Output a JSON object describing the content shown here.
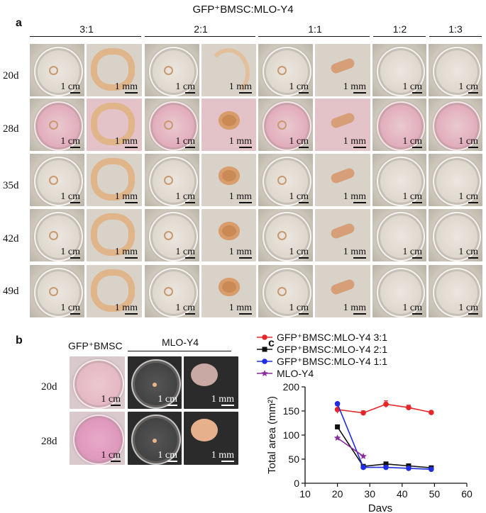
{
  "panel_a": {
    "letter": "a",
    "title": "GFP⁺BMSC:MLO-Y4",
    "ratios": [
      "3:1",
      "2:1",
      "1:1",
      "1:2",
      "1:3"
    ],
    "days": [
      "20d",
      "28d",
      "35d",
      "42d",
      "49d"
    ],
    "scale_cm": "1 cm",
    "scale_mm": "1 mm"
  },
  "panel_b": {
    "letter": "b",
    "label_bmsc": "GFP⁺BMSC",
    "label_mlo": "MLO-Y4",
    "days": [
      "20d",
      "28d"
    ],
    "scale_cm": "1 cm",
    "scale_mm": "1 mm"
  },
  "chart_data": {
    "panel_letter": "c",
    "type": "line",
    "title": "",
    "xlabel": "Days",
    "ylabel": "Total area (mm²)",
    "xlim": [
      10,
      60
    ],
    "ylim": [
      0,
      200
    ],
    "xticks": [
      10,
      20,
      30,
      40,
      50,
      60
    ],
    "yticks": [
      0,
      50,
      100,
      150,
      200
    ],
    "legend_position": "top",
    "series": [
      {
        "name": "GFP⁺BMSC:MLO-Y4 3:1",
        "color": "#e8262a",
        "marker": "circle",
        "x": [
          20,
          28,
          35,
          42,
          49
        ],
        "y": [
          153,
          146,
          164,
          157,
          147
        ],
        "err": [
          8,
          4,
          7,
          5,
          0
        ]
      },
      {
        "name": "GFP⁺BMSC:MLO-Y4 2:1",
        "color": "#111111",
        "marker": "square",
        "x": [
          20,
          28,
          35,
          42,
          49
        ],
        "y": [
          117,
          35,
          40,
          36,
          32
        ],
        "err": [
          0,
          0,
          0,
          0,
          0
        ]
      },
      {
        "name": "GFP⁺BMSC:MLO-Y4 1:1",
        "color": "#1f2ee0",
        "marker": "circle",
        "x": [
          20,
          28,
          35,
          42,
          49
        ],
        "y": [
          165,
          33,
          33,
          31,
          29
        ],
        "err": [
          0,
          0,
          0,
          0,
          0
        ]
      },
      {
        "name": "MLO-Y4",
        "color": "#8a2a9e",
        "marker": "star",
        "x": [
          20,
          28
        ],
        "y": [
          94,
          56
        ],
        "err": [
          0,
          0
        ]
      }
    ]
  }
}
